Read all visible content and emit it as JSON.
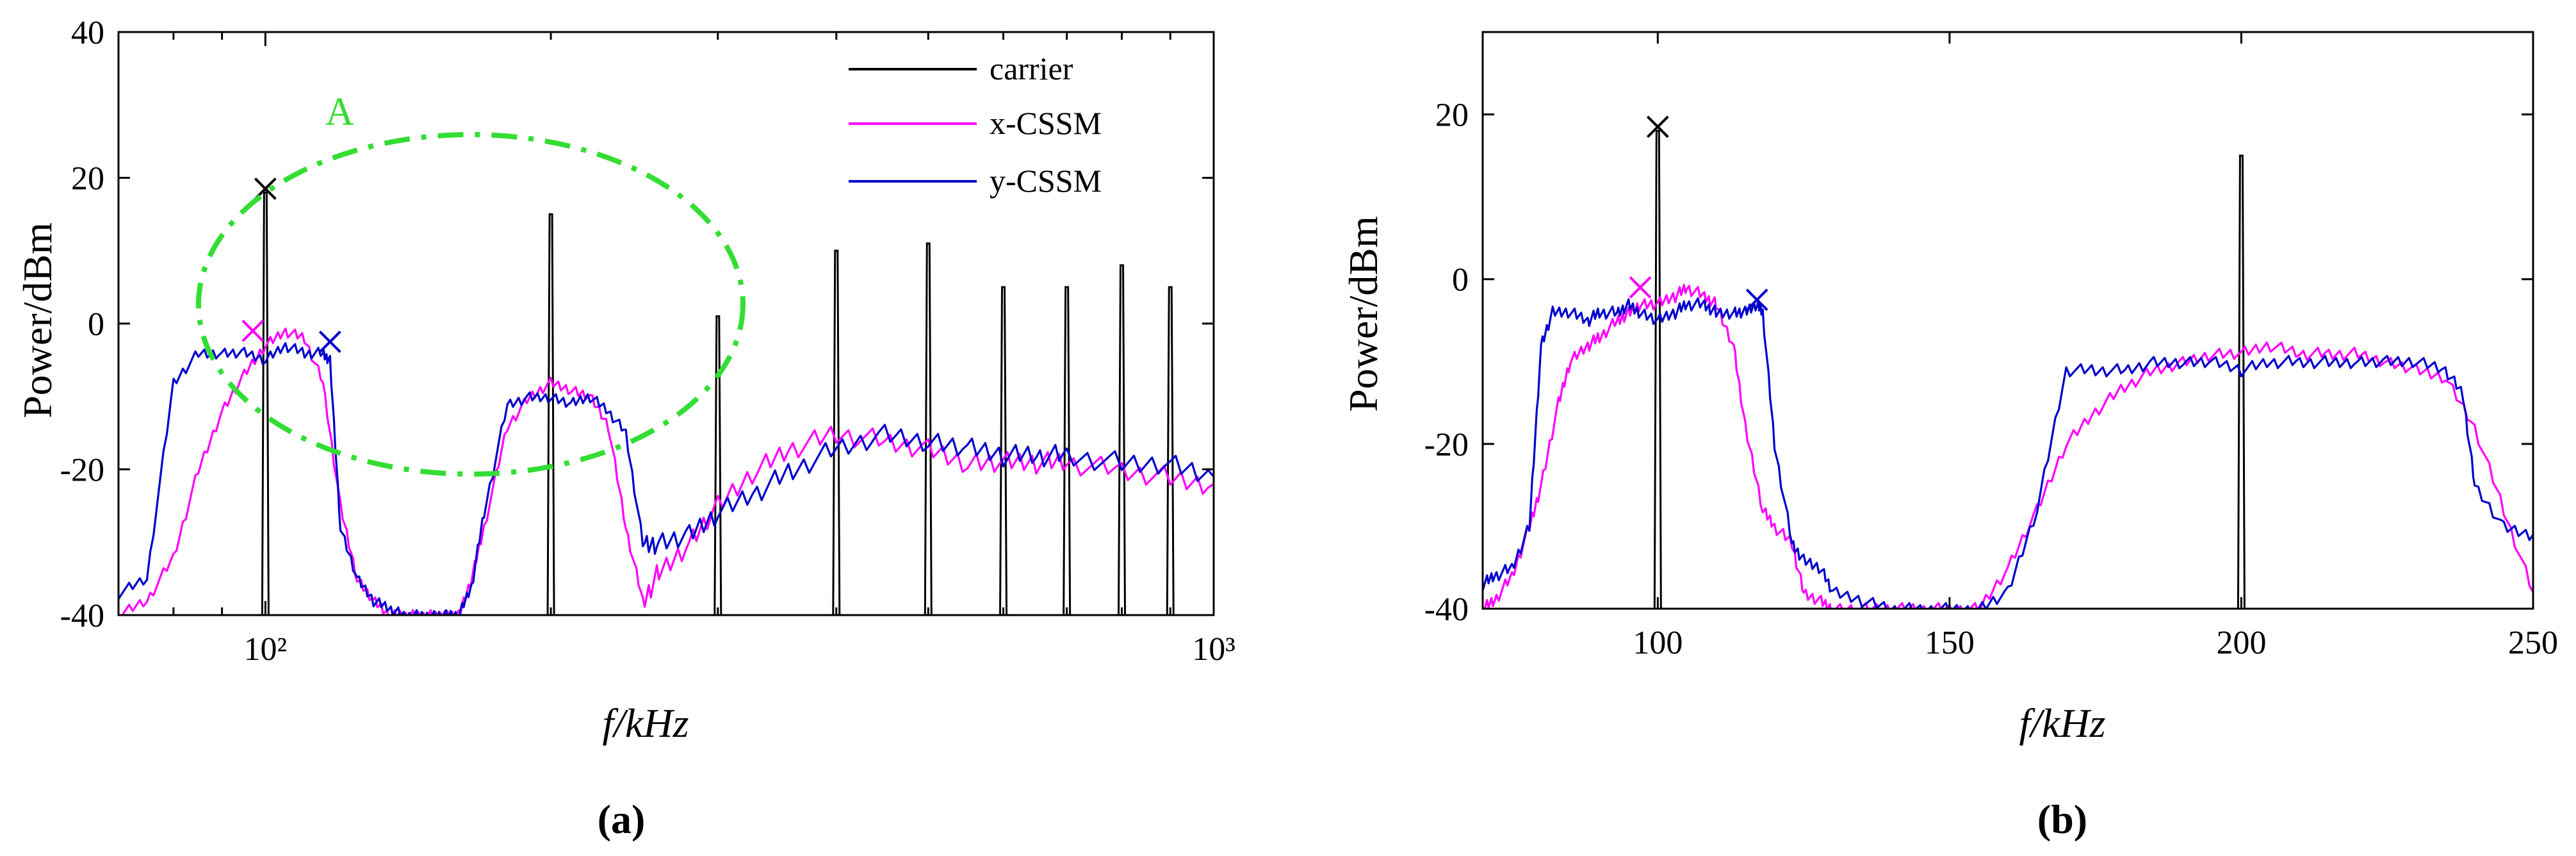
{
  "chart_data": [
    {
      "id": "a",
      "type": "line",
      "xscale": "log",
      "panel_label": "(a)",
      "xlabel": "f/kHz",
      "ylabel": "Power/dBm",
      "xlim": [
        70,
        1000
      ],
      "ylim": [
        -40,
        40
      ],
      "xtick_labels": [
        "10²",
        "10³"
      ],
      "ytick_values": [
        -40,
        -20,
        0,
        20,
        40
      ],
      "grid": false,
      "legend_position": "top-right",
      "legend": [
        {
          "name": "carrier",
          "color": "#000000"
        },
        {
          "name": "x-CSSM",
          "color": "#ff00ff"
        },
        {
          "name": "y-CSSM",
          "color": "#0000cc"
        }
      ],
      "annotation": {
        "text": "A",
        "color": "#33dd33"
      },
      "series": [
        {
          "name": "carrier",
          "color": "#000000",
          "peaks": [
            {
              "x": 100,
              "y": 18
            },
            {
              "x": 200,
              "y": 15
            },
            {
              "x": 300,
              "y": 1
            },
            {
              "x": 400,
              "y": 10
            },
            {
              "x": 500,
              "y": 11
            },
            {
              "x": 600,
              "y": 5
            },
            {
              "x": 700,
              "y": 5
            },
            {
              "x": 800,
              "y": 8
            },
            {
              "x": 900,
              "y": 5
            }
          ]
        },
        {
          "name": "x-CSSM",
          "color": "#ff00ff",
          "x": [
            70,
            75,
            80,
            85,
            90,
            95,
            100,
            105,
            110,
            115,
            120,
            125,
            130,
            135,
            140,
            145,
            150,
            155,
            160,
            165,
            170,
            180,
            190,
            200,
            210,
            220,
            230,
            240,
            250,
            260,
            280,
            300,
            330,
            360,
            400,
            450,
            500,
            550,
            600,
            650,
            700,
            800,
            900,
            1000
          ],
          "y": [
            -40,
            -38,
            -32,
            -20,
            -12,
            -7,
            -3,
            -1,
            -2,
            -8,
            -25,
            -35,
            -38,
            -40,
            -40,
            -40,
            -40,
            -40,
            -40,
            -35,
            -28,
            -14,
            -10,
            -8,
            -9,
            -10,
            -14,
            -28,
            -38,
            -34,
            -30,
            -25,
            -20,
            -17,
            -15,
            -16,
            -17,
            -19,
            -19,
            -19,
            -19,
            -20,
            -21,
            -22
          ]
        },
        {
          "name": "y-CSSM",
          "color": "#0000cc",
          "x": [
            70,
            75,
            80,
            85,
            90,
            95,
            100,
            105,
            110,
            115,
            117,
            120,
            125,
            130,
            135,
            140,
            145,
            150,
            155,
            160,
            165,
            170,
            180,
            190,
            200,
            210,
            220,
            230,
            240,
            250,
            260,
            280,
            300,
            330,
            360,
            400,
            450,
            500,
            550,
            600,
            650,
            700,
            800,
            900,
            1000
          ],
          "y": [
            -37,
            -35,
            -8,
            -4,
            -4,
            -4,
            -5,
            -3,
            -4,
            -4,
            -5,
            -28,
            -35,
            -38,
            -39,
            -40,
            -40,
            -40,
            -40,
            -40,
            -36,
            -26,
            -11,
            -10,
            -10,
            -11,
            -10,
            -12,
            -15,
            -30,
            -30,
            -29,
            -26,
            -23,
            -20,
            -17,
            -15,
            -16,
            -17,
            -18,
            -18,
            -18,
            -19,
            -19,
            -21
          ]
        }
      ],
      "markers": [
        {
          "series": "carrier",
          "x": 100,
          "y": 18.5,
          "symbol": "x"
        },
        {
          "series": "x-CSSM",
          "x": 97,
          "y": -1,
          "symbol": "x"
        },
        {
          "series": "y-CSSM",
          "x": 117,
          "y": -2.5,
          "symbol": "x"
        }
      ]
    },
    {
      "id": "b",
      "type": "line",
      "xscale": "linear",
      "panel_label": "(b)",
      "xlabel": "f/kHz",
      "ylabel": "Power/dBm",
      "xlim": [
        70,
        250
      ],
      "ylim": [
        -40,
        30
      ],
      "xtick_values": [
        100,
        150,
        200,
        250
      ],
      "ytick_values": [
        -40,
        -20,
        0,
        20
      ],
      "grid": false,
      "series": [
        {
          "name": "carrier",
          "color": "#000000",
          "peaks": [
            {
              "x": 100,
              "y": 18
            },
            {
              "x": 200,
              "y": 15
            }
          ]
        },
        {
          "name": "x-CSSM",
          "color": "#ff00ff",
          "x": [
            70,
            72,
            75,
            78,
            80,
            83,
            85,
            88,
            90,
            93,
            95,
            97,
            100,
            103,
            105,
            108,
            110,
            113,
            115,
            118,
            120,
            123,
            125,
            128,
            130,
            135,
            140,
            145,
            150,
            155,
            160,
            165,
            170,
            175,
            180,
            185,
            190,
            195,
            200,
            205,
            210,
            215,
            220,
            225,
            230,
            235,
            240,
            245,
            250
          ],
          "y": [
            -40,
            -39,
            -36,
            -30,
            -25,
            -15,
            -10,
            -8,
            -7,
            -5,
            -4,
            -3,
            -3,
            -2,
            -1,
            -2,
            -3,
            -8,
            -18,
            -28,
            -30,
            -32,
            -38,
            -39,
            -40,
            -40,
            -40,
            -40,
            -40,
            -40,
            -35,
            -28,
            -20,
            -16,
            -13,
            -11,
            -10,
            -9,
            -9,
            -8,
            -9,
            -9,
            -9,
            -10,
            -11,
            -12,
            -18,
            -28,
            -38
          ]
        },
        {
          "name": "y-CSSM",
          "color": "#0000cc",
          "x": [
            70,
            72,
            75,
            78,
            80,
            82,
            85,
            88,
            90,
            93,
            95,
            97,
            100,
            103,
            105,
            108,
            110,
            113,
            115,
            117,
            118,
            120,
            123,
            125,
            128,
            130,
            135,
            140,
            145,
            150,
            155,
            160,
            165,
            170,
            175,
            180,
            185,
            190,
            195,
            200,
            205,
            210,
            215,
            220,
            225,
            230,
            235,
            238,
            240,
            245,
            250
          ],
          "y": [
            -37,
            -36,
            -35,
            -30,
            -8,
            -4,
            -4,
            -5,
            -4,
            -4,
            -3,
            -4,
            -5,
            -4,
            -3,
            -3,
            -4,
            -4,
            -4,
            -3,
            -4,
            -20,
            -32,
            -34,
            -35,
            -38,
            -39,
            -40,
            -40,
            -40,
            -40,
            -38,
            -28,
            -11,
            -11,
            -11,
            -10,
            -10,
            -10,
            -11,
            -10,
            -10,
            -10,
            -10,
            -10,
            -10,
            -11,
            -14,
            -25,
            -30,
            -31
          ]
        }
      ],
      "markers": [
        {
          "series": "carrier",
          "x": 100,
          "y": 18.5,
          "symbol": "x"
        },
        {
          "series": "x-CSSM",
          "x": 97,
          "y": -1,
          "symbol": "x"
        },
        {
          "series": "y-CSSM",
          "x": 117,
          "y": -2.5,
          "symbol": "x"
        }
      ]
    }
  ]
}
